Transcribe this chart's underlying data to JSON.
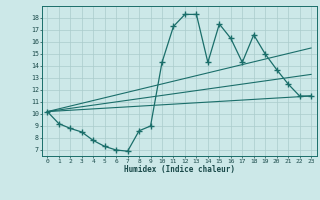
{
  "xlabel": "Humidex (Indice chaleur)",
  "bg_color": "#cce8e8",
  "grid_color": "#aacccc",
  "line_color": "#1a6e6a",
  "xlim": [
    -0.5,
    23.5
  ],
  "ylim": [
    6.5,
    19.0
  ],
  "yticks": [
    7,
    8,
    9,
    10,
    11,
    12,
    13,
    14,
    15,
    16,
    17,
    18
  ],
  "xticks": [
    0,
    1,
    2,
    3,
    4,
    5,
    6,
    7,
    8,
    9,
    10,
    11,
    12,
    13,
    14,
    15,
    16,
    17,
    18,
    19,
    20,
    21,
    22,
    23
  ],
  "series1_x": [
    0,
    1,
    2,
    3,
    4,
    5,
    6,
    7,
    8,
    9,
    10,
    11,
    12,
    13,
    14,
    15,
    16,
    17,
    18,
    19,
    20,
    21,
    22,
    23
  ],
  "series1_y": [
    10.2,
    9.2,
    8.8,
    8.5,
    7.8,
    7.3,
    7.0,
    6.9,
    8.6,
    9.0,
    14.3,
    17.3,
    18.3,
    18.3,
    14.3,
    17.5,
    16.3,
    14.3,
    16.6,
    15.0,
    13.7,
    12.5,
    11.5,
    11.5
  ],
  "line1_x": [
    0,
    23
  ],
  "line1_y": [
    10.2,
    11.5
  ],
  "line2_x": [
    0,
    23
  ],
  "line2_y": [
    10.2,
    15.5
  ],
  "line3_x": [
    0,
    23
  ],
  "line3_y": [
    10.2,
    11.5
  ]
}
